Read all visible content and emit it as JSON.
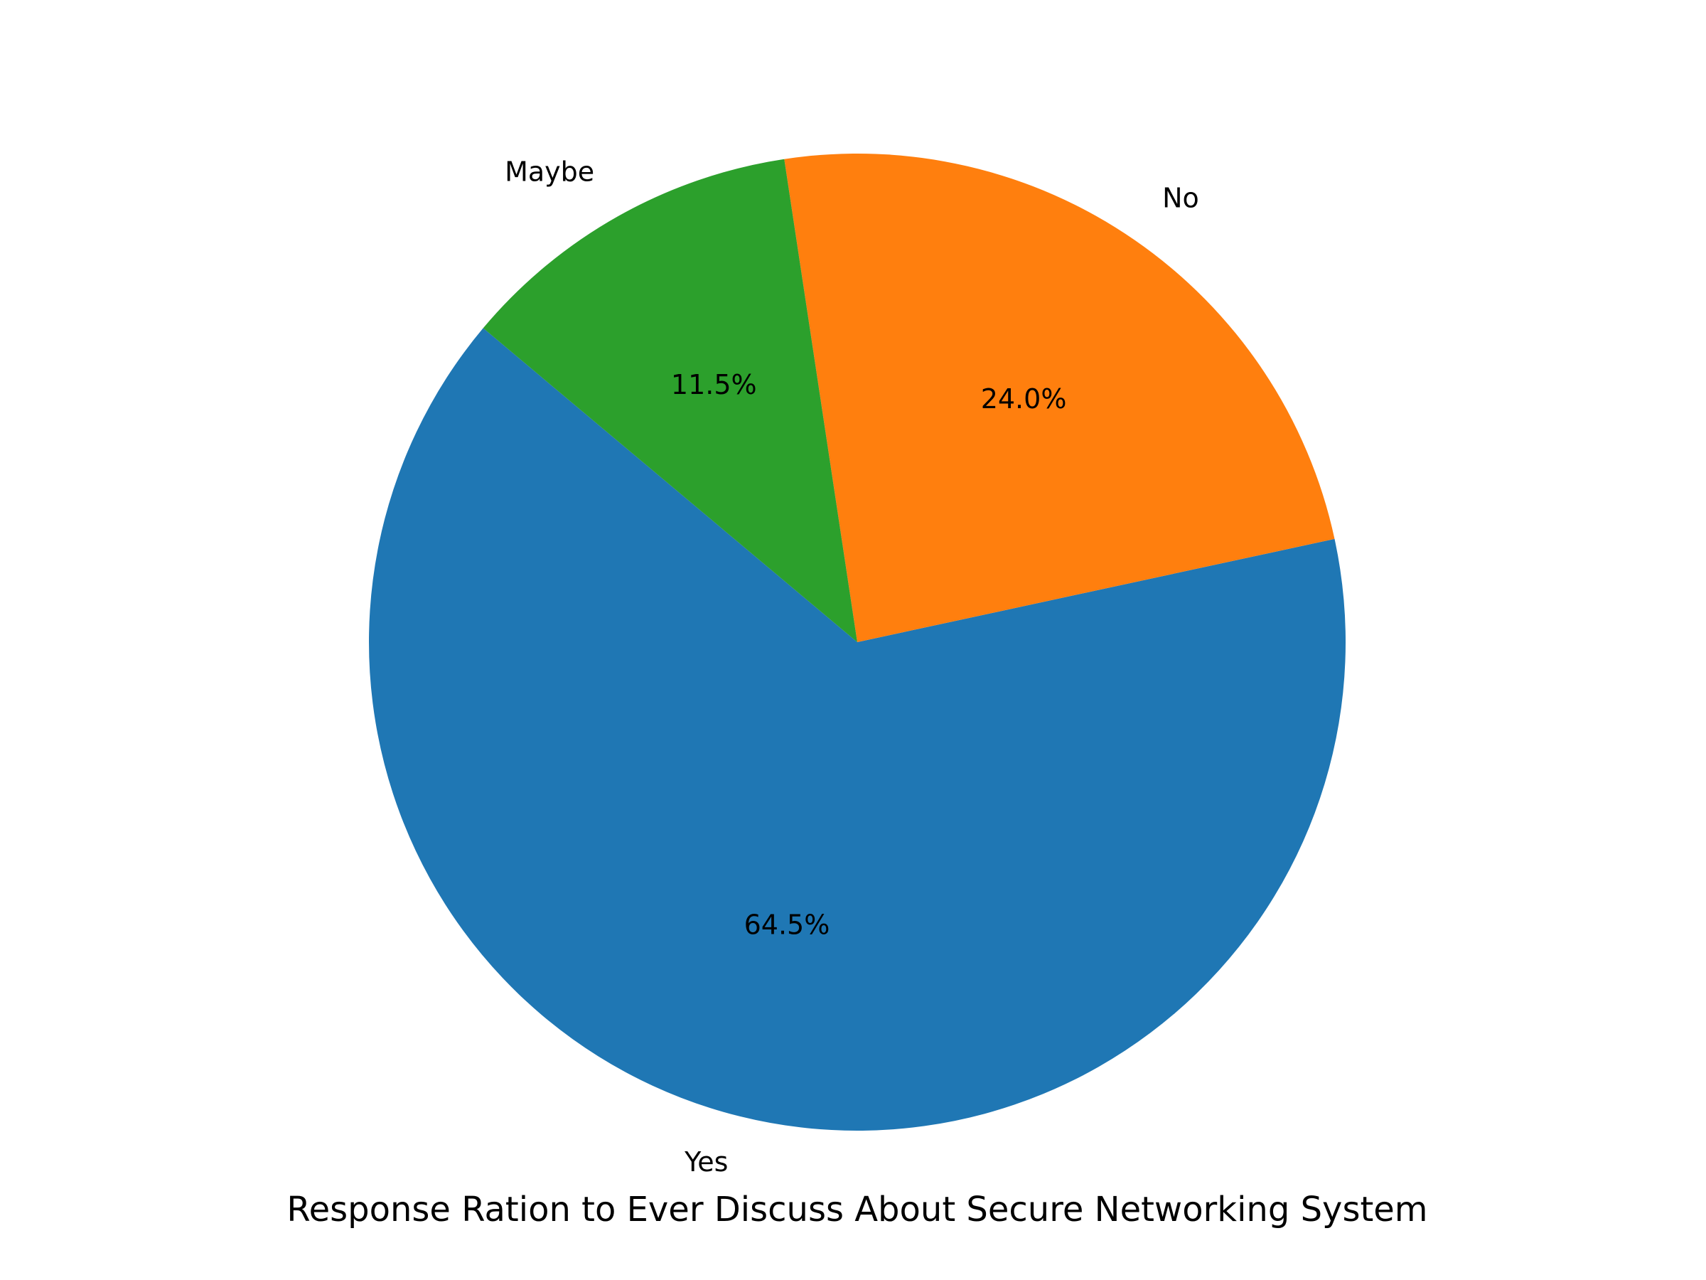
{
  "chart_data": {
    "type": "pie",
    "title": "Response Ration to Ever Discuss About Secure Networking System",
    "slices": [
      {
        "label": "Yes",
        "value": 64.5,
        "pct_label": "64.5%",
        "color": "#1f77b4"
      },
      {
        "label": "No",
        "value": 24.0,
        "pct_label": "24.0%",
        "color": "#ff7f0e"
      },
      {
        "label": "Maybe",
        "value": 11.5,
        "pct_label": "11.5%",
        "color": "#2ca02c"
      }
    ],
    "start_angle_deg": 140,
    "direction": "counterclockwise",
    "legend": "none"
  }
}
